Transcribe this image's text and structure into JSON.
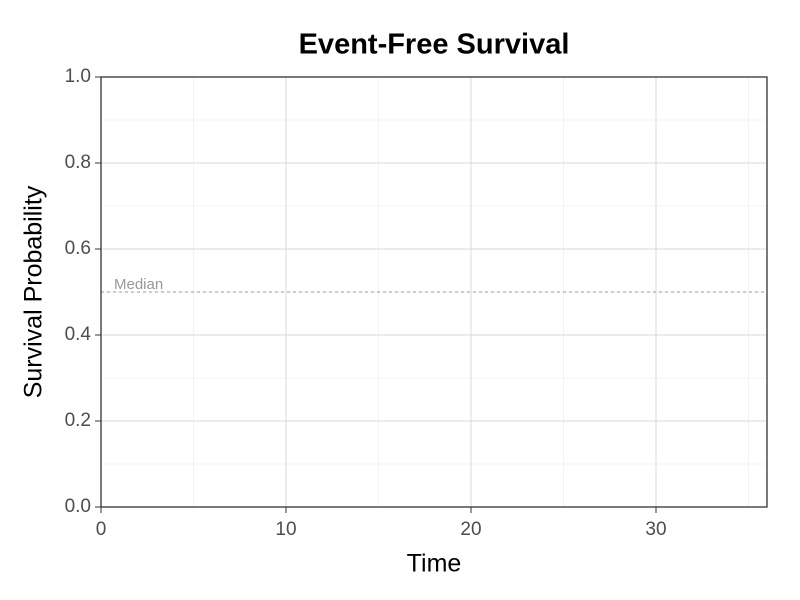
{
  "chart_data": {
    "type": "line",
    "title": "Event-Free Survival",
    "xlabel": "Time",
    "ylabel": "Survival Probability",
    "xlim": [
      0,
      36
    ],
    "ylim": [
      0,
      1
    ],
    "xticks": [
      0,
      10,
      20,
      30
    ],
    "yticks": [
      {
        "value": 0,
        "label": "0.0"
      },
      {
        "value": 0.2,
        "label": "0.2"
      },
      {
        "value": 0.4,
        "label": "0.4"
      },
      {
        "value": 0.6,
        "label": "0.6"
      },
      {
        "value": 0.8,
        "label": "0.8"
      },
      {
        "value": 1,
        "label": "1.0"
      }
    ],
    "xminor": [
      5,
      15,
      25,
      35
    ],
    "yminor": [
      0.1,
      0.3,
      0.5,
      0.7,
      0.9
    ],
    "grid": true,
    "hline": {
      "value": 0.5,
      "label": "Median",
      "color": "#999999"
    },
    "series": []
  }
}
